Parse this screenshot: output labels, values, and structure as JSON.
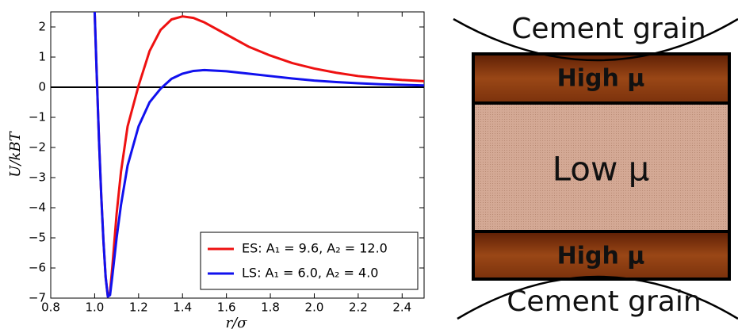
{
  "chart_data": {
    "type": "line",
    "xlabel": "r/σ",
    "ylabel": "U/kBT",
    "x": [
      1.0,
      1.01,
      1.02,
      1.03,
      1.04,
      1.05,
      1.06,
      1.07,
      1.08,
      1.1,
      1.12,
      1.15,
      1.2,
      1.25,
      1.3,
      1.35,
      1.4,
      1.45,
      1.5,
      1.6,
      1.7,
      1.8,
      1.9,
      2.0,
      2.1,
      2.2,
      2.3,
      2.4,
      2.5
    ],
    "series": [
      {
        "name": "ES: A₁ = 9.6, A₂ = 12.0",
        "color": "#ee1111",
        "values": [
          2.5,
          0.3,
          -1.8,
          -3.6,
          -5.1,
          -6.3,
          -6.95,
          -6.8,
          -6.0,
          -4.2,
          -2.8,
          -1.3,
          0.05,
          1.2,
          1.9,
          2.25,
          2.35,
          2.3,
          2.15,
          1.75,
          1.35,
          1.05,
          0.8,
          0.62,
          0.48,
          0.37,
          0.3,
          0.24,
          0.2
        ]
      },
      {
        "name": "LS: A₁ = 6.0, A₂ = 4.0",
        "color": "#1111ee",
        "values": [
          2.5,
          0.3,
          -1.8,
          -3.6,
          -5.1,
          -6.3,
          -6.95,
          -6.9,
          -6.3,
          -5.0,
          -3.9,
          -2.6,
          -1.3,
          -0.5,
          -0.05,
          0.28,
          0.45,
          0.54,
          0.57,
          0.53,
          0.45,
          0.37,
          0.29,
          0.22,
          0.17,
          0.13,
          0.1,
          0.08,
          0.06
        ]
      }
    ],
    "xlim": [
      0.8,
      2.5
    ],
    "xticks": [
      0.8,
      {
        "value": 1,
        "label": "1.0"
      },
      1.2,
      1.4,
      1.6,
      1.8,
      {
        "value": 2,
        "label": "2.0"
      },
      2.2,
      2.4
    ],
    "ylim": [
      -7,
      2.5
    ],
    "yticks": [
      {
        "value": -7,
        "label": "−7"
      },
      {
        "value": -6,
        "label": "−6"
      },
      {
        "value": -5,
        "label": "−5"
      },
      {
        "value": -4,
        "label": "−4"
      },
      {
        "value": -3,
        "label": "−3"
      },
      {
        "value": -2,
        "label": "−2"
      },
      {
        "value": -1,
        "label": "−1"
      },
      0,
      1,
      2
    ],
    "hline": 0,
    "legend": "lower right"
  },
  "diagram": {
    "top_grain": "Cement grain",
    "layers": [
      "High μ",
      "Low μ",
      "High μ"
    ],
    "bottom_grain": "Cement grain"
  }
}
